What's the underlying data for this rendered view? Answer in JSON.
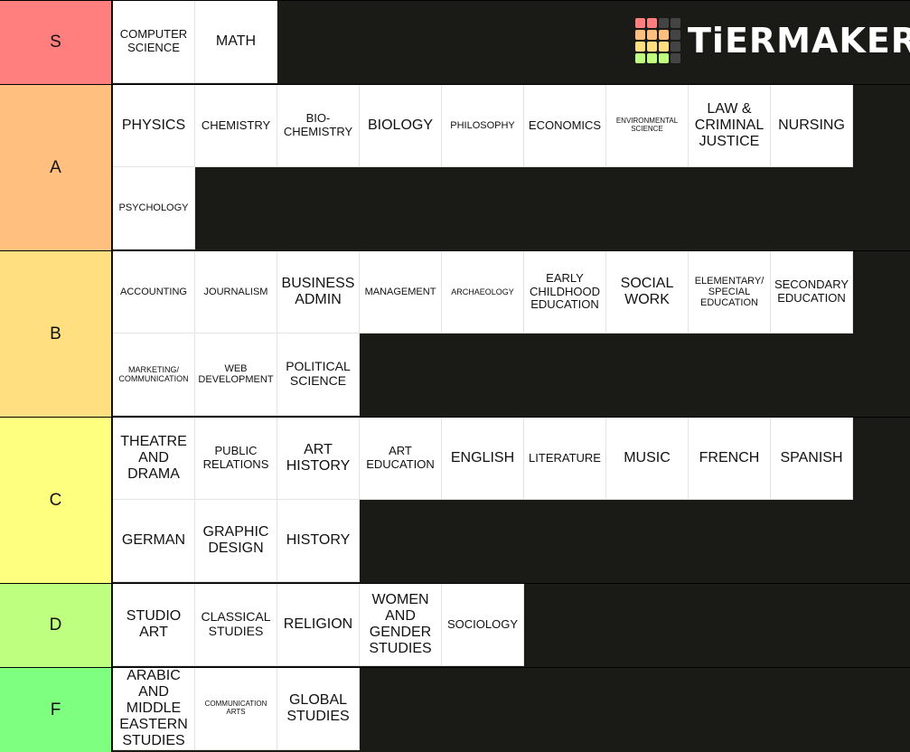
{
  "app": {
    "logo_text": "TiERMAKER"
  },
  "logo_colors": [
    "#ff7f7f",
    "#ffbf7f",
    "#ffdf7f",
    "#ffff7f",
    "#bfff7f",
    "#7fff7f",
    "#444444"
  ],
  "logo_cells": [
    0,
    0,
    6,
    6,
    1,
    1,
    1,
    6,
    2,
    2,
    2,
    6,
    4,
    4,
    4,
    6
  ],
  "tiers": [
    {
      "label": "S",
      "color": "#ff7f7f",
      "height": 93,
      "items": [
        [
          "COMPUTER\nSCIENCE",
          "fs-m"
        ],
        [
          "MATH",
          "fs-xl"
        ]
      ]
    },
    {
      "label": "A",
      "color": "#ffbf7f",
      "height": 184,
      "items": [
        [
          "PHYSICS",
          "fs-xl"
        ],
        [
          "CHEMISTRY",
          "fs-m"
        ],
        [
          "BIO-\nCHEMISTRY",
          "fs-m"
        ],
        [
          "BIOLOGY",
          "fs-xl"
        ],
        [
          "PHILOSOPHY",
          "fs-s"
        ],
        [
          "ECONOMICS",
          "fs-m"
        ],
        [
          "ENVIRONMENTAL\nSCIENCE",
          "fs-xxs"
        ],
        [
          "LAW &\nCRIMINAL\nJUSTICE",
          "fs-xl"
        ],
        [
          "NURSING",
          "fs-xl"
        ],
        [
          "PSYCHOLOGY",
          "fs-s"
        ]
      ]
    },
    {
      "label": "B",
      "color": "#ffdf7f",
      "height": 184,
      "items": [
        [
          "ACCOUNTING",
          "fs-s"
        ],
        [
          "JOURNALISM",
          "fs-s"
        ],
        [
          "BUSINESS\nADMIN",
          "fs-xl"
        ],
        [
          "MANAGEMENT",
          "fs-s"
        ],
        [
          "ARCHAEOLOGY",
          "fs-xs"
        ],
        [
          "EARLY\nCHILDHOOD\nEDUCATION",
          "fs-m"
        ],
        [
          "SOCIAL\nWORK",
          "fs-xl"
        ],
        [
          "ELEMENTARY/\nSPECIAL\nEDUCATION",
          "fs-s"
        ],
        [
          "SECONDARY\nEDUCATION",
          "fs-m"
        ],
        [
          "MARKETING/\nCOMMUNICATION",
          "fs-xs"
        ],
        [
          "WEB\nDEVELOPMENT",
          "fs-s"
        ],
        [
          "POLITICAL\nSCIENCE",
          "fs-l"
        ]
      ]
    },
    {
      "label": "C",
      "color": "#ffff7f",
      "height": 184,
      "items": [
        [
          "THEATRE\nAND\nDRAMA",
          "fs-xl"
        ],
        [
          "PUBLIC\nRELATIONS",
          "fs-m"
        ],
        [
          "ART\nHISTORY",
          "fs-xl"
        ],
        [
          "ART\nEDUCATION",
          "fs-m"
        ],
        [
          "ENGLISH",
          "fs-xl"
        ],
        [
          "LITERATURE",
          "fs-m"
        ],
        [
          "MUSIC",
          "fs-xl"
        ],
        [
          "FRENCH",
          "fs-xl"
        ],
        [
          "SPANISH",
          "fs-xl"
        ],
        [
          "GERMAN",
          "fs-xl"
        ],
        [
          "GRAPHIC\nDESIGN",
          "fs-xl"
        ],
        [
          "HISTORY",
          "fs-xl"
        ]
      ]
    },
    {
      "label": "D",
      "color": "#bfff7f",
      "height": 93,
      "items": [
        [
          "STUDIO\nART",
          "fs-xl"
        ],
        [
          "CLASSICAL\nSTUDIES",
          "fs-l"
        ],
        [
          "RELIGION",
          "fs-xl"
        ],
        [
          "WOMEN\nAND\nGENDER\nSTUDIES",
          "fs-xl"
        ],
        [
          "SOCIOLOGY",
          "fs-m"
        ]
      ]
    },
    {
      "label": "F",
      "color": "#7fff7f",
      "height": 94,
      "items": [
        [
          "ARABIC\nAND\nMIDDLE\nEASTERN\nSTUDIES",
          "fs-xl"
        ],
        [
          "COMMUNICATION\nARTS",
          "fs-xxs"
        ],
        [
          "GLOBAL\nSTUDIES",
          "fs-xl"
        ]
      ]
    }
  ]
}
